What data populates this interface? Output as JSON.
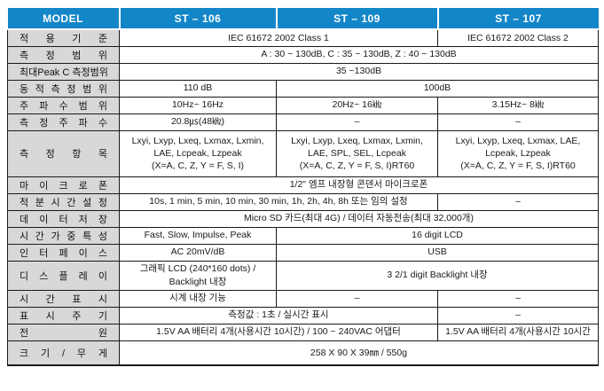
{
  "header": {
    "model_label": "MODEL",
    "columns": [
      "ST – 106",
      "ST – 109",
      "ST – 107"
    ]
  },
  "rows": [
    {
      "label": "적 용 기 준",
      "cells": [
        {
          "text": "IEC 61672 2002 Class 1",
          "span": 2
        },
        {
          "text": "IEC 61672 2002 Class 2",
          "span": 1
        }
      ]
    },
    {
      "label": "측 정 범 위",
      "cells": [
        {
          "text": "A : 30 ~ 130dB, C : 35 ~ 130dB, Z : 40 ~ 130dB",
          "span": 3
        }
      ]
    },
    {
      "label": "최대Peak C 측정범위",
      "cells": [
        {
          "text": "35 ~130dB",
          "span": 3
        }
      ]
    },
    {
      "label": "동 적 측 정 범 위",
      "cells": [
        {
          "text": "110 dB",
          "span": 1
        },
        {
          "text": "100dB",
          "span": 2
        }
      ]
    },
    {
      "label": "주 파 수 범 위",
      "cells": [
        {
          "text": "10Hz~ 16Hz",
          "span": 1
        },
        {
          "text": "20Hz~ 16㎑",
          "span": 1
        },
        {
          "text": "3.15Hz~ 8㎑",
          "span": 1
        }
      ]
    },
    {
      "label": "측 정 주 파 수",
      "cells": [
        {
          "text": "20.8㎲(48㎑)",
          "span": 1
        },
        {
          "text": "–",
          "span": 1
        },
        {
          "text": "–",
          "span": 1
        }
      ]
    },
    {
      "label": "측 정 항 목",
      "cells": [
        {
          "lines": [
            "Lxyi, Lxyp, Lxeq, Lxmax, Lxmin,",
            "LAE, Lcpeak, Lzpeak",
            "(X=A, C, Z, Y = F, S, I)"
          ],
          "span": 1
        },
        {
          "lines": [
            "Lxyi, Lxyp, Lxeq, Lxmax, Lxmin,",
            "LAE, SPL, SEL, Lcpeak",
            "(X=A, C, Z, Y = F, S, I)RT60"
          ],
          "span": 1
        },
        {
          "lines": [
            "Lxyi, Lxyp, Lxeq, Lxmax, LAE,",
            "Lcpeak, Lzpeak",
            "(X=A, C, Z, Y = F, S, I)RT60"
          ],
          "span": 1
        }
      ]
    },
    {
      "label": "마 이 크 로 폰",
      "cells": [
        {
          "text": "1/2\" 엠프 내장형 콘덴서 마이크로폰",
          "span": 3
        }
      ]
    },
    {
      "label": "적 분 시 간 설 정",
      "cells": [
        {
          "text": "10s, 1 min, 5 min, 10 min, 30 min, 1h, 2h, 4h, 8h 또는 임의 설정",
          "span": 2
        },
        {
          "text": "–",
          "span": 1
        }
      ]
    },
    {
      "label": "데 이 터 저 장",
      "cells": [
        {
          "text": "Micro SD 카드(최대 4G) / 데이터 자동전송(최대 32,000개)",
          "span": 3
        }
      ]
    },
    {
      "label": "시 간 가 중 특 성",
      "cells": [
        {
          "text": "Fast, Slow, Impulse, Peak",
          "span": 1
        },
        {
          "text": "16 digit LCD",
          "span": 2
        }
      ]
    },
    {
      "label": "인 터 페 이 스",
      "cells": [
        {
          "text": "AC 20mV/dB",
          "span": 1
        },
        {
          "text": "USB",
          "span": 2
        }
      ]
    },
    {
      "label": "디 스 플 레 이",
      "cells": [
        {
          "lines": [
            "그래픽 LCD (240*160 dots) /",
            "Backlight 내장"
          ],
          "span": 1
        },
        {
          "text": "3 2/1 digit Backlight 내장",
          "span": 2
        }
      ]
    },
    {
      "label": "시 간 표 시",
      "cells": [
        {
          "text": "시계 내장 기능",
          "span": 1
        },
        {
          "text": "–",
          "span": 1
        },
        {
          "text": "–",
          "span": 1
        }
      ]
    },
    {
      "label": "표 시 주 기",
      "cells": [
        {
          "text": "측정값 : 1초 / 실시간 표시",
          "span": 2
        },
        {
          "text": "–",
          "span": 1
        }
      ]
    },
    {
      "label": "전 원",
      "cells": [
        {
          "text": "1.5V AA 배터리 4개(사용시간 10시간) / 100 ~ 240VAC 어댑터",
          "span": 2
        },
        {
          "text": "1.5V AA 배터리 4개(사용시간 10시간",
          "span": 1
        }
      ]
    },
    {
      "label": "크 기 / 무 게",
      "cells": [
        {
          "text": "258 X 90 X 39㎜ / 550g",
          "span": 3
        }
      ]
    }
  ],
  "colors": {
    "header_bg": "#1386c8",
    "label_bg": "#d8d8d8",
    "border": "#1a1a1a"
  }
}
